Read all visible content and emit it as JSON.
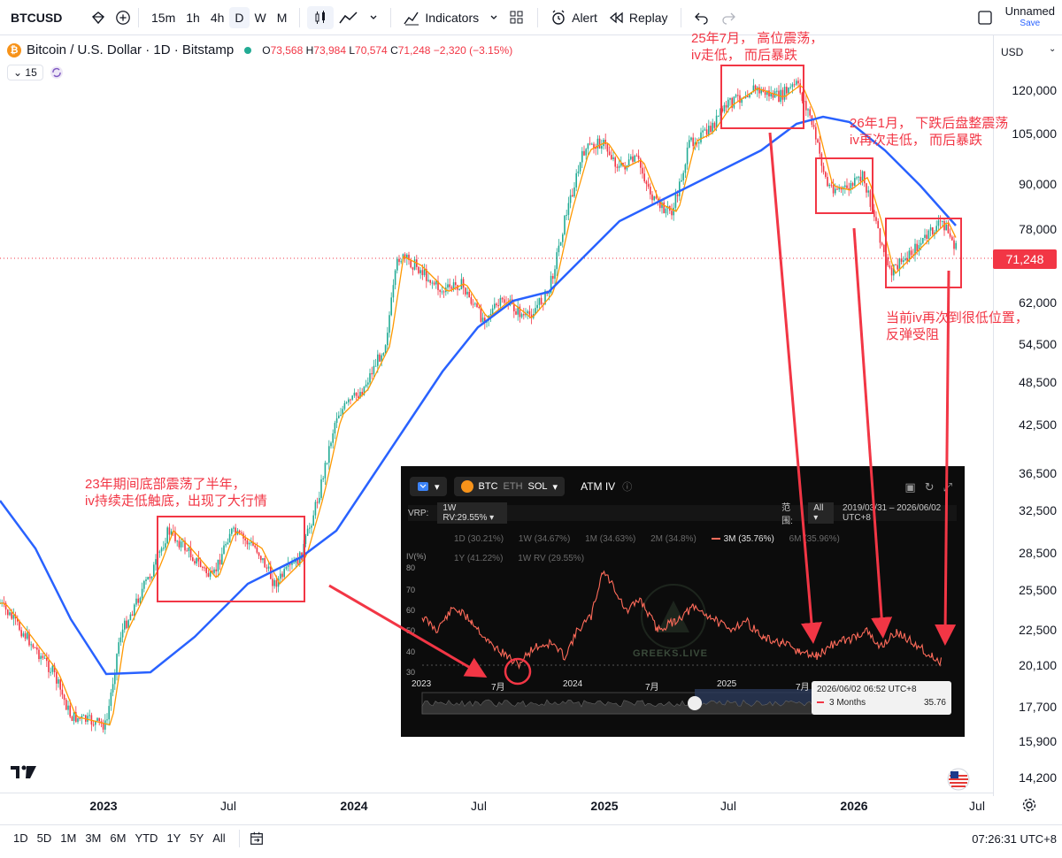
{
  "toolbar": {
    "symbol": "BTCUSD",
    "intervals": [
      "15m",
      "1h",
      "4h",
      "D",
      "W",
      "M"
    ],
    "active_interval": "D",
    "indicators_label": "Indicators",
    "alert_label": "Alert",
    "replay_label": "Replay",
    "layout_name": "Unnamed",
    "save_label": "Save"
  },
  "legend": {
    "title": "Bitcoin / U.S. Dollar · 1D · Bitstamp",
    "open": "73,568",
    "high": "73,984",
    "low": "70,574",
    "close": "71,248",
    "change": "−2,320 (−3.15%)",
    "indicator_count": "15"
  },
  "price_axis": {
    "currency": "USD",
    "labels": [
      "120,000",
      "105,000",
      "90,000",
      "78,000",
      "62,000",
      "54,500",
      "48,500",
      "42,500",
      "36,500",
      "32,500",
      "28,500",
      "25,500",
      "22,500",
      "20,100",
      "17,700",
      "15,900",
      "14,200"
    ],
    "current_price": "71,248"
  },
  "time_axis": {
    "labels": [
      {
        "text": "2023",
        "year": true
      },
      {
        "text": "Jul",
        "year": false
      },
      {
        "text": "2024",
        "year": true
      },
      {
        "text": "Jul",
        "year": false
      },
      {
        "text": "2025",
        "year": true
      },
      {
        "text": "Jul",
        "year": false
      },
      {
        "text": "2026",
        "year": true
      },
      {
        "text": "Jul",
        "year": false
      }
    ]
  },
  "bottom_bar": {
    "ranges": [
      "1D",
      "5D",
      "1M",
      "3M",
      "6M",
      "YTD",
      "1Y",
      "5Y",
      "All"
    ],
    "clock": "07:26:31 UTC+8"
  },
  "annotations": {
    "note_2023": [
      "23年期间底部震荡了半年，",
      "iv持续走低触底，出现了大行情"
    ],
    "note_2025": [
      "25年7月，  高位震荡，",
      "iv走低，  而后暴跌"
    ],
    "note_2026": [
      "26年1月，  下跌后盘整震荡",
      "iv再次走低，  而后暴跌"
    ],
    "note_now": [
      "当前iv再次到很低位置，",
      "反弹受阻"
    ]
  },
  "iv_panel": {
    "coins": [
      "BTC",
      "ETH",
      "SOL"
    ],
    "title": "ATM IV",
    "vrp_label": "VRP:",
    "vrp_value": "1W RV:29.55%",
    "range_label": "范围:",
    "range_value": "All",
    "date_range": "2019/03/31 – 2026/06/02 UTC+8",
    "legend": [
      "1D (30.21%)",
      "1W (34.67%)",
      "1M (34.63%)",
      "2M (34.8%)",
      "3M (35.76%)",
      "6M (35.96%)",
      "1Y (41.22%)",
      "1W RV (29.55%)"
    ],
    "legend_active": "3M (35.76%)",
    "y_unit": "IV(%)",
    "y_ticks": [
      "80",
      "70",
      "60",
      "50",
      "40",
      "30"
    ],
    "x_ticks": [
      "2023",
      "7月",
      "2024",
      "7月",
      "2025",
      "7月"
    ],
    "watermark": "GREEKS.LIVE",
    "tooltip_time": "2026/06/02 06:52 UTC+8",
    "tooltip_series": "3 Months",
    "tooltip_value": "35.76"
  },
  "colors": {
    "up": "#22ab94",
    "down": "#f23645",
    "ma_fast": "#ff9800",
    "ma_slow": "#2962ff",
    "annotation": "#f23645",
    "iv_line": "#ff6b5a"
  }
}
